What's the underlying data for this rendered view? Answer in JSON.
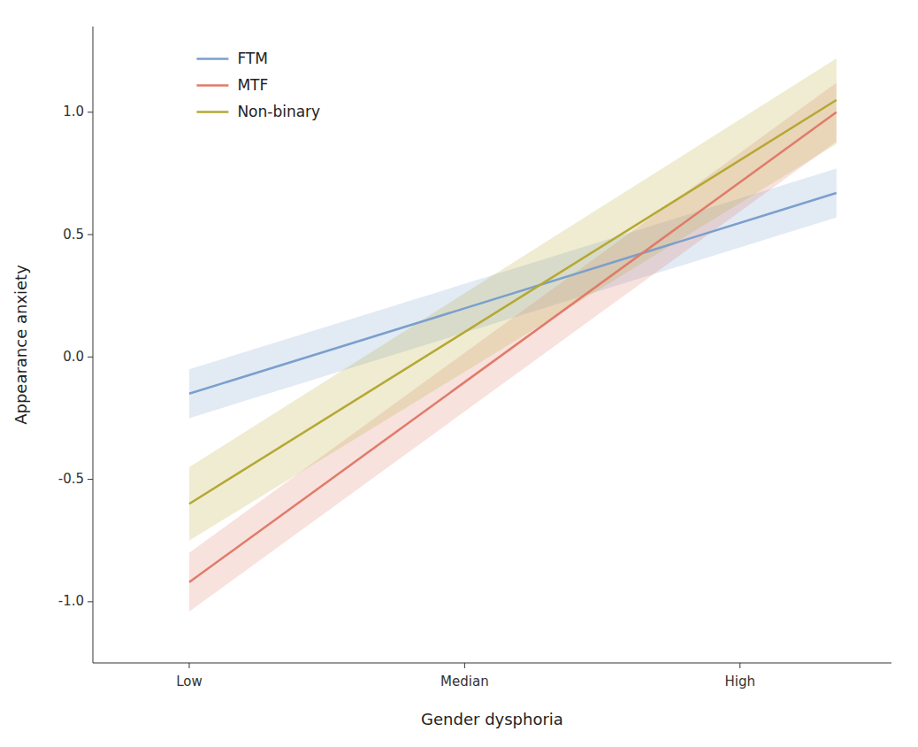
{
  "chart_data": {
    "type": "line",
    "xlabel": "Gender dysphoria",
    "ylabel": "Appearance anxiety",
    "xlim": [
      0.65,
      3.55
    ],
    "xticks": [
      {
        "value": 1,
        "label": "Low"
      },
      {
        "value": 2,
        "label": "Median"
      },
      {
        "value": 3,
        "label": "High"
      }
    ],
    "ylim": [
      -1.25,
      1.35
    ],
    "yticks": [
      {
        "value": -1.0,
        "label": "-1.0"
      },
      -0.5,
      {
        "value": 0.0,
        "label": "0.0"
      },
      0.5,
      {
        "value": 1.0,
        "label": "1.0"
      }
    ],
    "grid": false,
    "legend": "upper left",
    "series": [
      {
        "name": "FTM",
        "color": "#7b9fcc",
        "x": [
          1.0,
          3.35
        ],
        "values": [
          -0.15,
          0.67
        ],
        "ci_lower": [
          -0.25,
          0.57
        ],
        "ci_upper": [
          -0.05,
          0.77
        ]
      },
      {
        "name": "MTF",
        "color": "#e07b6a",
        "x": [
          1.0,
          3.35
        ],
        "values": [
          -0.92,
          1.0
        ],
        "ci_lower": [
          -1.04,
          0.88
        ],
        "ci_upper": [
          -0.8,
          1.12
        ]
      },
      {
        "name": "Non-binary",
        "color": "#b5a832",
        "x": [
          1.0,
          3.35
        ],
        "values": [
          -0.6,
          1.05
        ],
        "ci_lower": [
          -0.75,
          0.87
        ],
        "ci_upper": [
          -0.45,
          1.22
        ]
      }
    ]
  }
}
